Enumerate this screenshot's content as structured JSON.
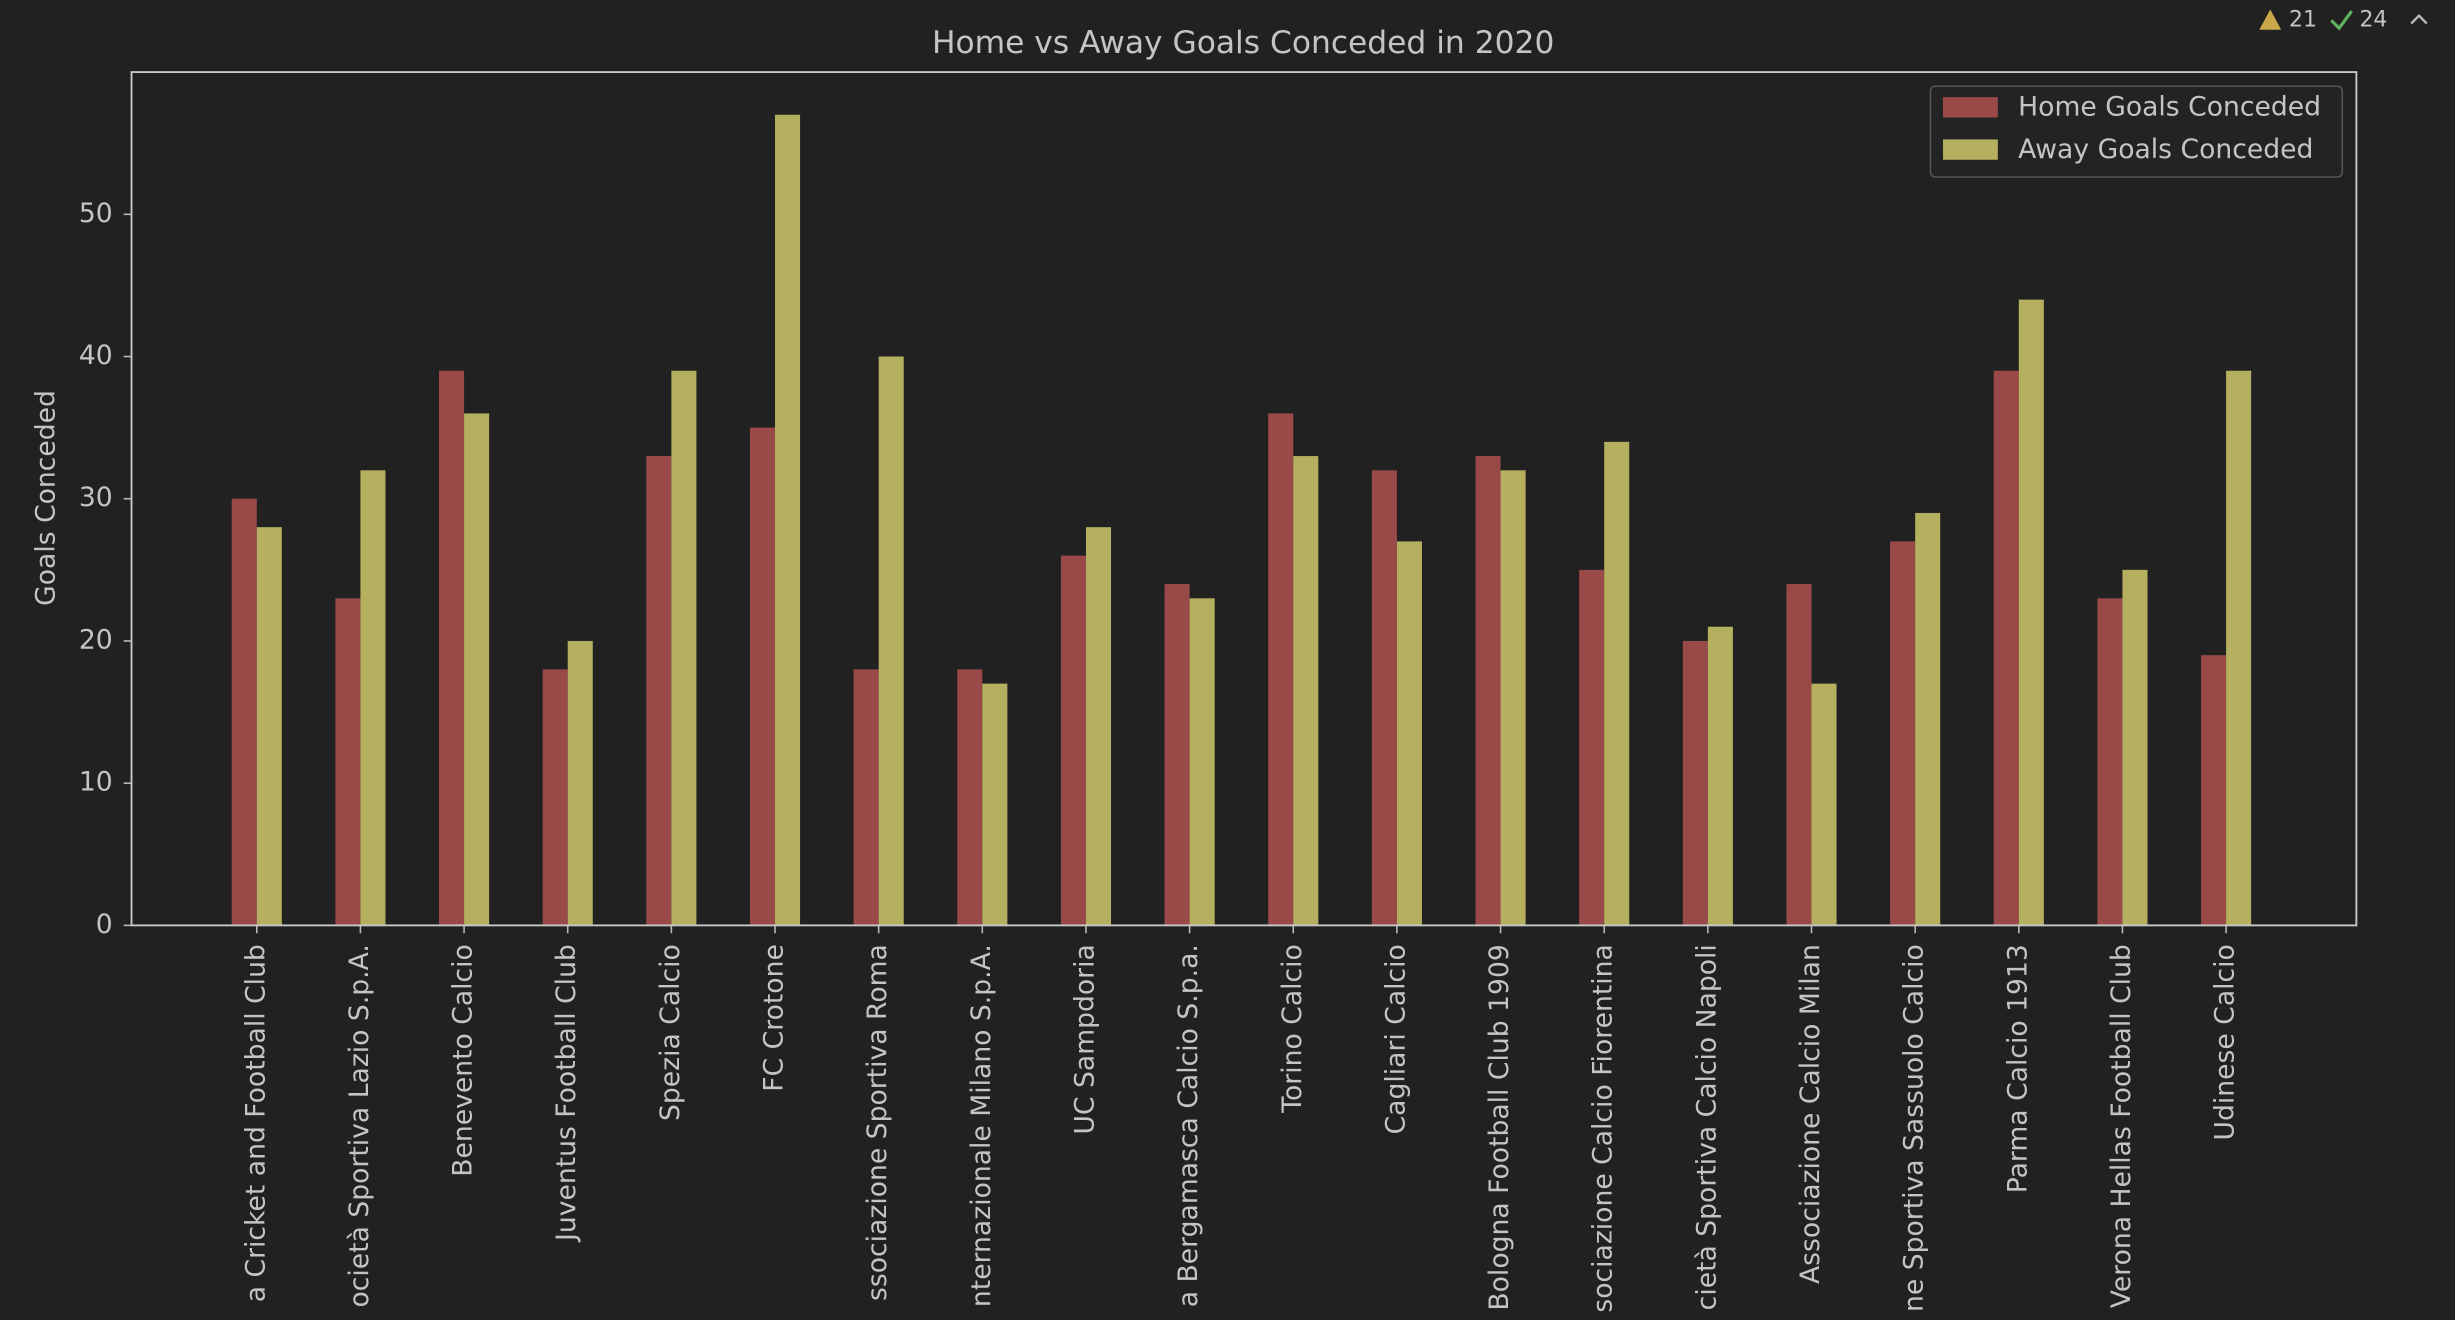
{
  "status": {
    "warnings": 21,
    "checks": 24
  },
  "chart_data": {
    "type": "bar",
    "title": "Home vs Away Goals Conceded in 2020",
    "ylabel": "Goals Conceded",
    "categories": [
      "a Cricket and Football Club",
      "ocietà Sportiva Lazio S.p.A.",
      "Benevento Calcio",
      "Juventus Football Club",
      "Spezia Calcio",
      "FC Crotone",
      "ssociazione Sportiva Roma",
      "nternazionale Milano S.p.A.",
      "UC Sampdoria",
      "a Bergamasca Calcio S.p.a.",
      "Torino Calcio",
      "Cagliari Calcio",
      "Bologna Football Club 1909",
      "sociazione Calcio Fiorentina",
      "cietà Sportiva Calcio Napoli",
      "Associazione Calcio Milan",
      "ne Sportiva Sassuolo Calcio",
      "Parma Calcio 1913",
      "Verona Hellas Football Club",
      "Udinese Calcio"
    ],
    "series": [
      {
        "name": "Home Goals Conceded",
        "color": "#9a4949",
        "values": [
          30,
          23,
          39,
          18,
          33,
          35,
          18,
          18,
          26,
          24,
          36,
          32,
          33,
          25,
          20,
          24,
          27,
          39,
          23,
          19
        ]
      },
      {
        "name": "Away Goals Conceded",
        "color": "#b5b060",
        "values": [
          28,
          32,
          36,
          20,
          39,
          57,
          40,
          17,
          28,
          23,
          33,
          27,
          32,
          34,
          21,
          17,
          29,
          44,
          25,
          39
        ]
      }
    ],
    "ylim": [
      0,
      60
    ],
    "yticks": [
      0,
      10,
      20,
      30,
      40,
      50
    ],
    "legend": "upper right"
  }
}
